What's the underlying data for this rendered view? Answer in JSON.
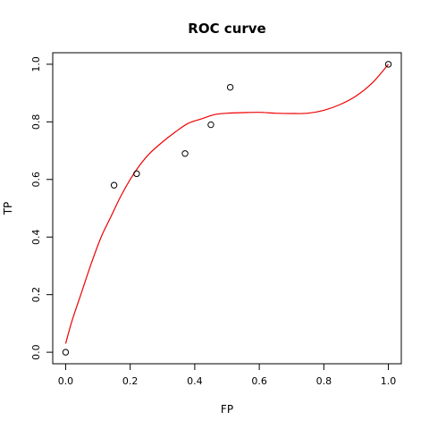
{
  "chart_data": {
    "type": "scatter",
    "title": "ROC curve",
    "xlabel": "FP",
    "ylabel": "TP",
    "xlim": [
      -0.04,
      1.04
    ],
    "ylim": [
      -0.04,
      1.04
    ],
    "x_ticks": [
      0.0,
      0.2,
      0.4,
      0.6,
      0.8,
      1.0
    ],
    "y_ticks": [
      0.0,
      0.2,
      0.4,
      0.6,
      0.8,
      1.0
    ],
    "x_tick_labels": [
      "0.0",
      "0.2",
      "0.4",
      "0.6",
      "0.8",
      "1.0"
    ],
    "y_tick_labels": [
      "0.0",
      "0.2",
      "0.4",
      "0.6",
      "0.8",
      "1.0"
    ],
    "points": [
      {
        "x": 0.0,
        "y": 0.0
      },
      {
        "x": 0.15,
        "y": 0.58
      },
      {
        "x": 0.22,
        "y": 0.62
      },
      {
        "x": 0.37,
        "y": 0.69
      },
      {
        "x": 0.45,
        "y": 0.79
      },
      {
        "x": 0.51,
        "y": 0.92
      },
      {
        "x": 1.0,
        "y": 1.0
      }
    ],
    "fitted_curve": {
      "x": [
        0.0,
        0.02,
        0.05,
        0.08,
        0.11,
        0.14,
        0.17,
        0.2,
        0.23,
        0.26,
        0.3,
        0.34,
        0.38,
        0.42,
        0.46,
        0.5,
        0.55,
        0.6,
        0.65,
        0.7,
        0.75,
        0.8,
        0.85,
        0.9,
        0.95,
        1.0
      ],
      "y": [
        0.03,
        0.11,
        0.21,
        0.31,
        0.4,
        0.47,
        0.54,
        0.6,
        0.65,
        0.69,
        0.73,
        0.765,
        0.795,
        0.81,
        0.825,
        0.83,
        0.832,
        0.833,
        0.83,
        0.829,
        0.83,
        0.84,
        0.86,
        0.89,
        0.935,
        1.0
      ]
    },
    "colors": {
      "curve": "#ee0000",
      "points": "#000000"
    },
    "grid": false,
    "legend": "none"
  }
}
